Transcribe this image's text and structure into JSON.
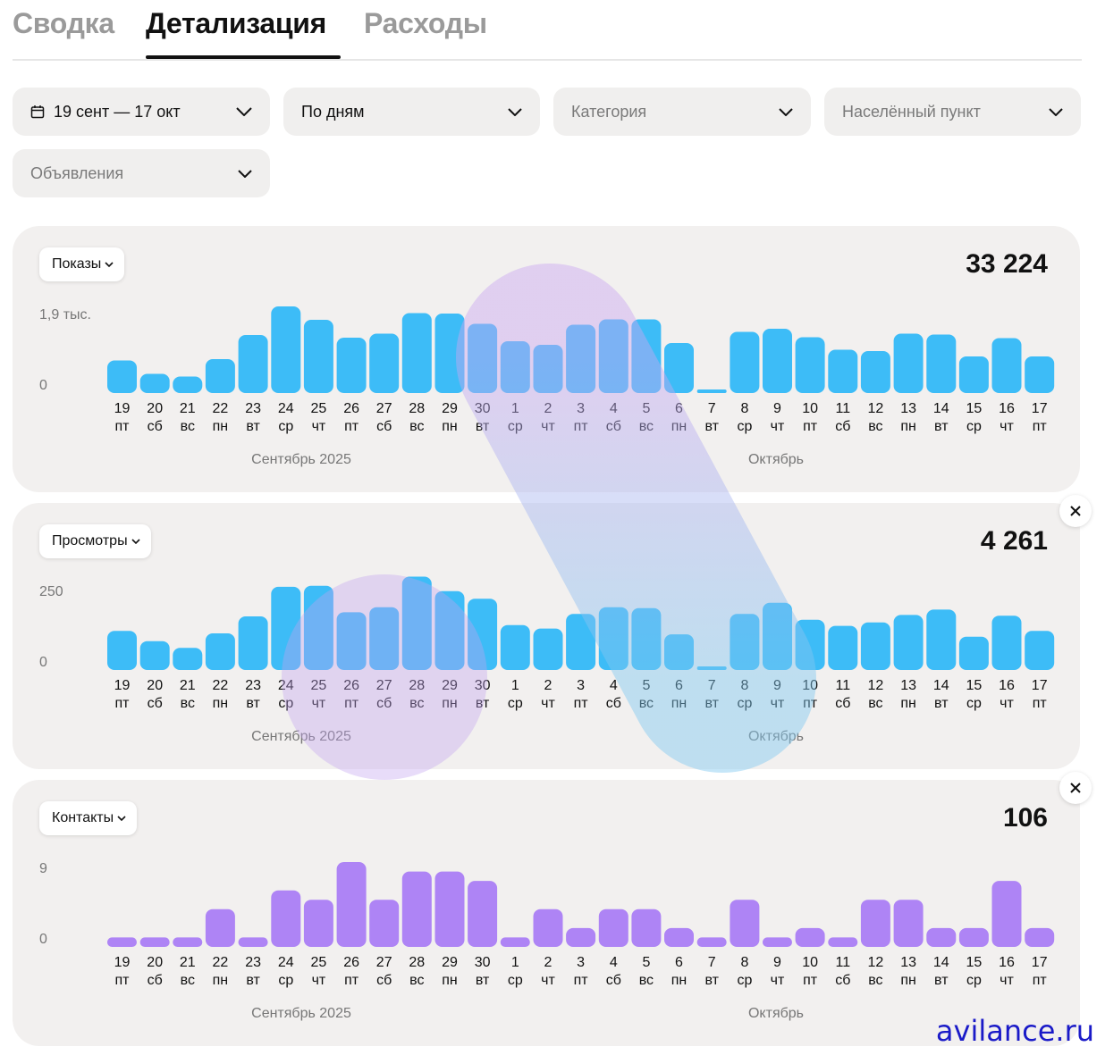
{
  "tabs": [
    "Сводка",
    "Детализация",
    "Расходы"
  ],
  "filters": {
    "period": "19 сент — 17 окт",
    "grouping": "По дням",
    "category": "Категория",
    "city": "Населённый пункт",
    "ads": "Объявления"
  },
  "icons": {
    "calendar": "calendar-icon",
    "chevron": "chevron-down-icon",
    "close": "close-icon"
  },
  "colors": {
    "blue": "#3dbcf7",
    "purple": "#ae84f5",
    "card_bg": "#f2f0ef",
    "filter_bg": "#f0efee"
  },
  "x_days": [
    "19",
    "20",
    "21",
    "22",
    "23",
    "24",
    "25",
    "26",
    "27",
    "28",
    "29",
    "30",
    "1",
    "2",
    "3",
    "4",
    "5",
    "6",
    "7",
    "8",
    "9",
    "10",
    "11",
    "12",
    "13",
    "14",
    "15",
    "16",
    "17"
  ],
  "x_weekdays": [
    "пт",
    "сб",
    "вс",
    "пн",
    "вт",
    "ср",
    "чт",
    "пт",
    "сб",
    "вс",
    "пн",
    "вт",
    "ср",
    "чт",
    "пт",
    "сб",
    "вс",
    "пн",
    "вт",
    "ср",
    "чт",
    "пт",
    "сб",
    "вс",
    "пн",
    "вт",
    "ср",
    "чт",
    "пт"
  ],
  "months": [
    "Сентябрь 2025",
    "Октябрь"
  ],
  "watermark": "avilance.ru",
  "charts": [
    {
      "metric": "Показы",
      "total": "33 224",
      "ymax_label": "1,9 тыс.",
      "ymin_label": "0",
      "ymax": 1900,
      "color": "#3dbcf7",
      "values": [
        730,
        430,
        370,
        760,
        1300,
        1940,
        1640,
        1240,
        1330,
        1790,
        1780,
        1550,
        1160,
        1080,
        1530,
        1650,
        1650,
        1120,
        50,
        1370,
        1440,
        1250,
        970,
        940,
        1330,
        1310,
        820,
        1230,
        820
      ]
    },
    {
      "metric": "Просмотры",
      "total": "4 261",
      "ymax_label": "250",
      "ymin_label": "0",
      "ymax": 250,
      "color": "#3dbcf7",
      "values": [
        115,
        85,
        65,
        108,
        158,
        245,
        248,
        170,
        185,
        275,
        232,
        210,
        132,
        122,
        165,
        185,
        182,
        105,
        8,
        165,
        198,
        148,
        130,
        140,
        162,
        178,
        98,
        160,
        115
      ]
    },
    {
      "metric": "Контакты",
      "total": "106",
      "ymax_label": "9",
      "ymin_label": "0",
      "ymax": 9,
      "color": "#ae84f5",
      "values": [
        1,
        1,
        1,
        4,
        1,
        6,
        5,
        9,
        5,
        8,
        8,
        7,
        1,
        4,
        2,
        4,
        4,
        2,
        1,
        5,
        1,
        2,
        1,
        5,
        5,
        2,
        2,
        7,
        2
      ]
    }
  ]
}
